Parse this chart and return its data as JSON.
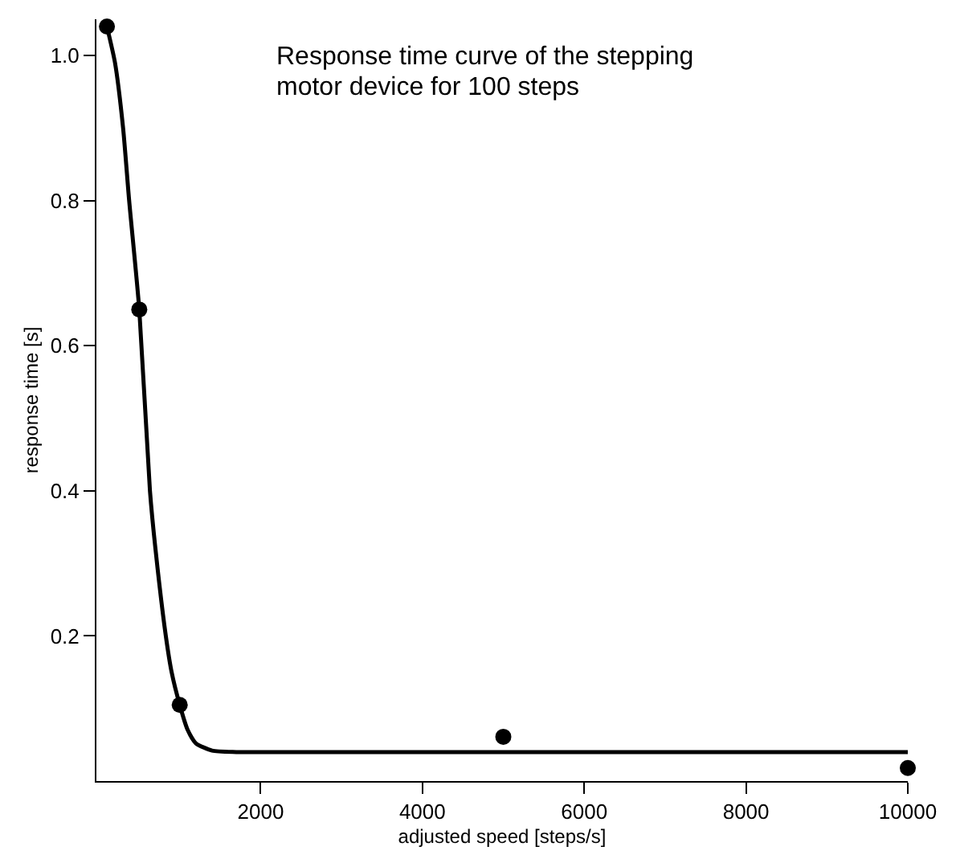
{
  "chart_data": {
    "type": "scatter",
    "title": "Response time curve of the stepping motor device for 100 steps",
    "xlabel": "adjusted speed [steps/s]",
    "ylabel": "response time [s]",
    "series": [
      {
        "color": "#000000",
        "marker": "circle",
        "x": [
          100,
          500,
          1000,
          5000,
          10000
        ],
        "values": [
          1.04,
          0.65,
          0.105,
          0.061,
          0.018
        ]
      },
      {
        "type": "line",
        "color": "#000000",
        "marker": "none",
        "line_style": "solid",
        "x": [
          100,
          200,
          300,
          375,
          500,
          632,
          700,
          828,
          900,
          1000,
          1100,
          1200,
          1400,
          1700,
          10000
        ],
        "values": [
          1.04,
          0.99,
          0.9,
          0.8,
          0.65,
          0.4,
          0.32,
          0.2,
          0.15,
          0.105,
          0.07,
          0.052,
          0.042,
          0.04,
          0.04
        ]
      }
    ],
    "xlim": [
      -30,
      10000
    ],
    "ylim": [
      0,
      1.05
    ],
    "xticks": [
      2000,
      4000,
      6000,
      8000,
      10000
    ],
    "yticks": [
      {
        "value": 0.2,
        "label": "0.2"
      },
      {
        "value": 0.4,
        "label": "0.4"
      },
      {
        "value": 0.6,
        "label": "0.6"
      },
      {
        "value": 0.8,
        "label": "0.8"
      },
      {
        "value": 1.0,
        "label": "1.0"
      }
    ],
    "grid": false
  }
}
